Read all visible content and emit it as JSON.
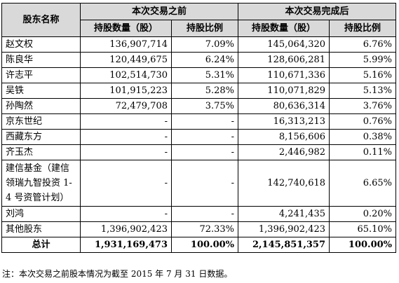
{
  "table": {
    "headers": {
      "shareholder": "股东名称",
      "before": "本次交易之前",
      "after": "本次交易完成后",
      "before_shares": "持股数量（股）",
      "before_ratio": "持股比例",
      "after_shares": "持股数量（股）",
      "after_ratio": "持股比例"
    },
    "rows": [
      {
        "name": "赵文权",
        "before_shares": "136,907,714",
        "before_ratio": "7.09%",
        "after_shares": "145,064,320",
        "after_ratio": "6.76%"
      },
      {
        "name": "陈良华",
        "before_shares": "120,449,675",
        "before_ratio": "6.24%",
        "after_shares": "128,606,281",
        "after_ratio": "5.99%"
      },
      {
        "name": "许志平",
        "before_shares": "102,514,730",
        "before_ratio": "5.31%",
        "after_shares": "110,671,336",
        "after_ratio": "5.16%"
      },
      {
        "name": "吴铁",
        "before_shares": "101,915,223",
        "before_ratio": "5.28%",
        "after_shares": "110,071,829",
        "after_ratio": "5.13%"
      },
      {
        "name": "孙陶然",
        "before_shares": "72,479,708",
        "before_ratio": "3.75%",
        "after_shares": "80,636,314",
        "after_ratio": "3.76%"
      },
      {
        "name": "京东世纪",
        "before_shares": "-",
        "before_ratio": "-",
        "after_shares": "16,313,213",
        "after_ratio": "0.76%"
      },
      {
        "name": "西藏东方",
        "before_shares": "-",
        "before_ratio": "-",
        "after_shares": "8,156,606",
        "after_ratio": "0.38%"
      },
      {
        "name": "齐玉杰",
        "before_shares": "-",
        "before_ratio": "-",
        "after_shares": "2,446,982",
        "after_ratio": "0.11%"
      },
      {
        "name": "建信基金（建信领瑞九智投资 1-4 号资管计划）",
        "before_shares": "-",
        "before_ratio": "-",
        "after_shares": "142,740,618",
        "after_ratio": "6.65%"
      },
      {
        "name": "刘鸿",
        "before_shares": "-",
        "before_ratio": "-",
        "after_shares": "4,241,435",
        "after_ratio": "0.20%"
      },
      {
        "name": "其他股东",
        "before_shares": "1,396,902,423",
        "before_ratio": "72.33%",
        "after_shares": "1,396,902,423",
        "after_ratio": "65.10%"
      }
    ],
    "total": {
      "label": "总计",
      "before_shares": "1,931,169,473",
      "before_ratio": "100.00%",
      "after_shares": "2,145,851,357",
      "after_ratio": "100.00%"
    }
  },
  "note": "注：本次交易之前股本情况为截至 2015 年 7 月 31 日数据。"
}
